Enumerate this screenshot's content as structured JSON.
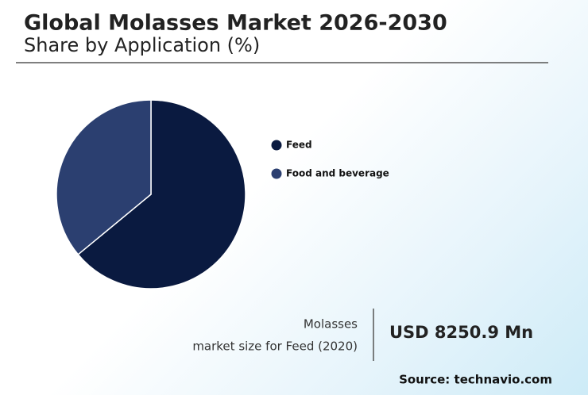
{
  "chart_data": {
    "type": "pie",
    "title": "Global Molasses Market 2026-2030",
    "subtitle": "Share by Application (%)",
    "categories": [
      "Feed",
      "Food and beverage"
    ],
    "values": [
      64,
      36
    ],
    "colors": [
      "#0a1a40",
      "#2b3f70"
    ]
  },
  "callout": {
    "lines": [
      "Molasses",
      "market size for Feed (2020)"
    ],
    "value": "USD 8250.9 Mn"
  },
  "source": "Source: technavio.com"
}
